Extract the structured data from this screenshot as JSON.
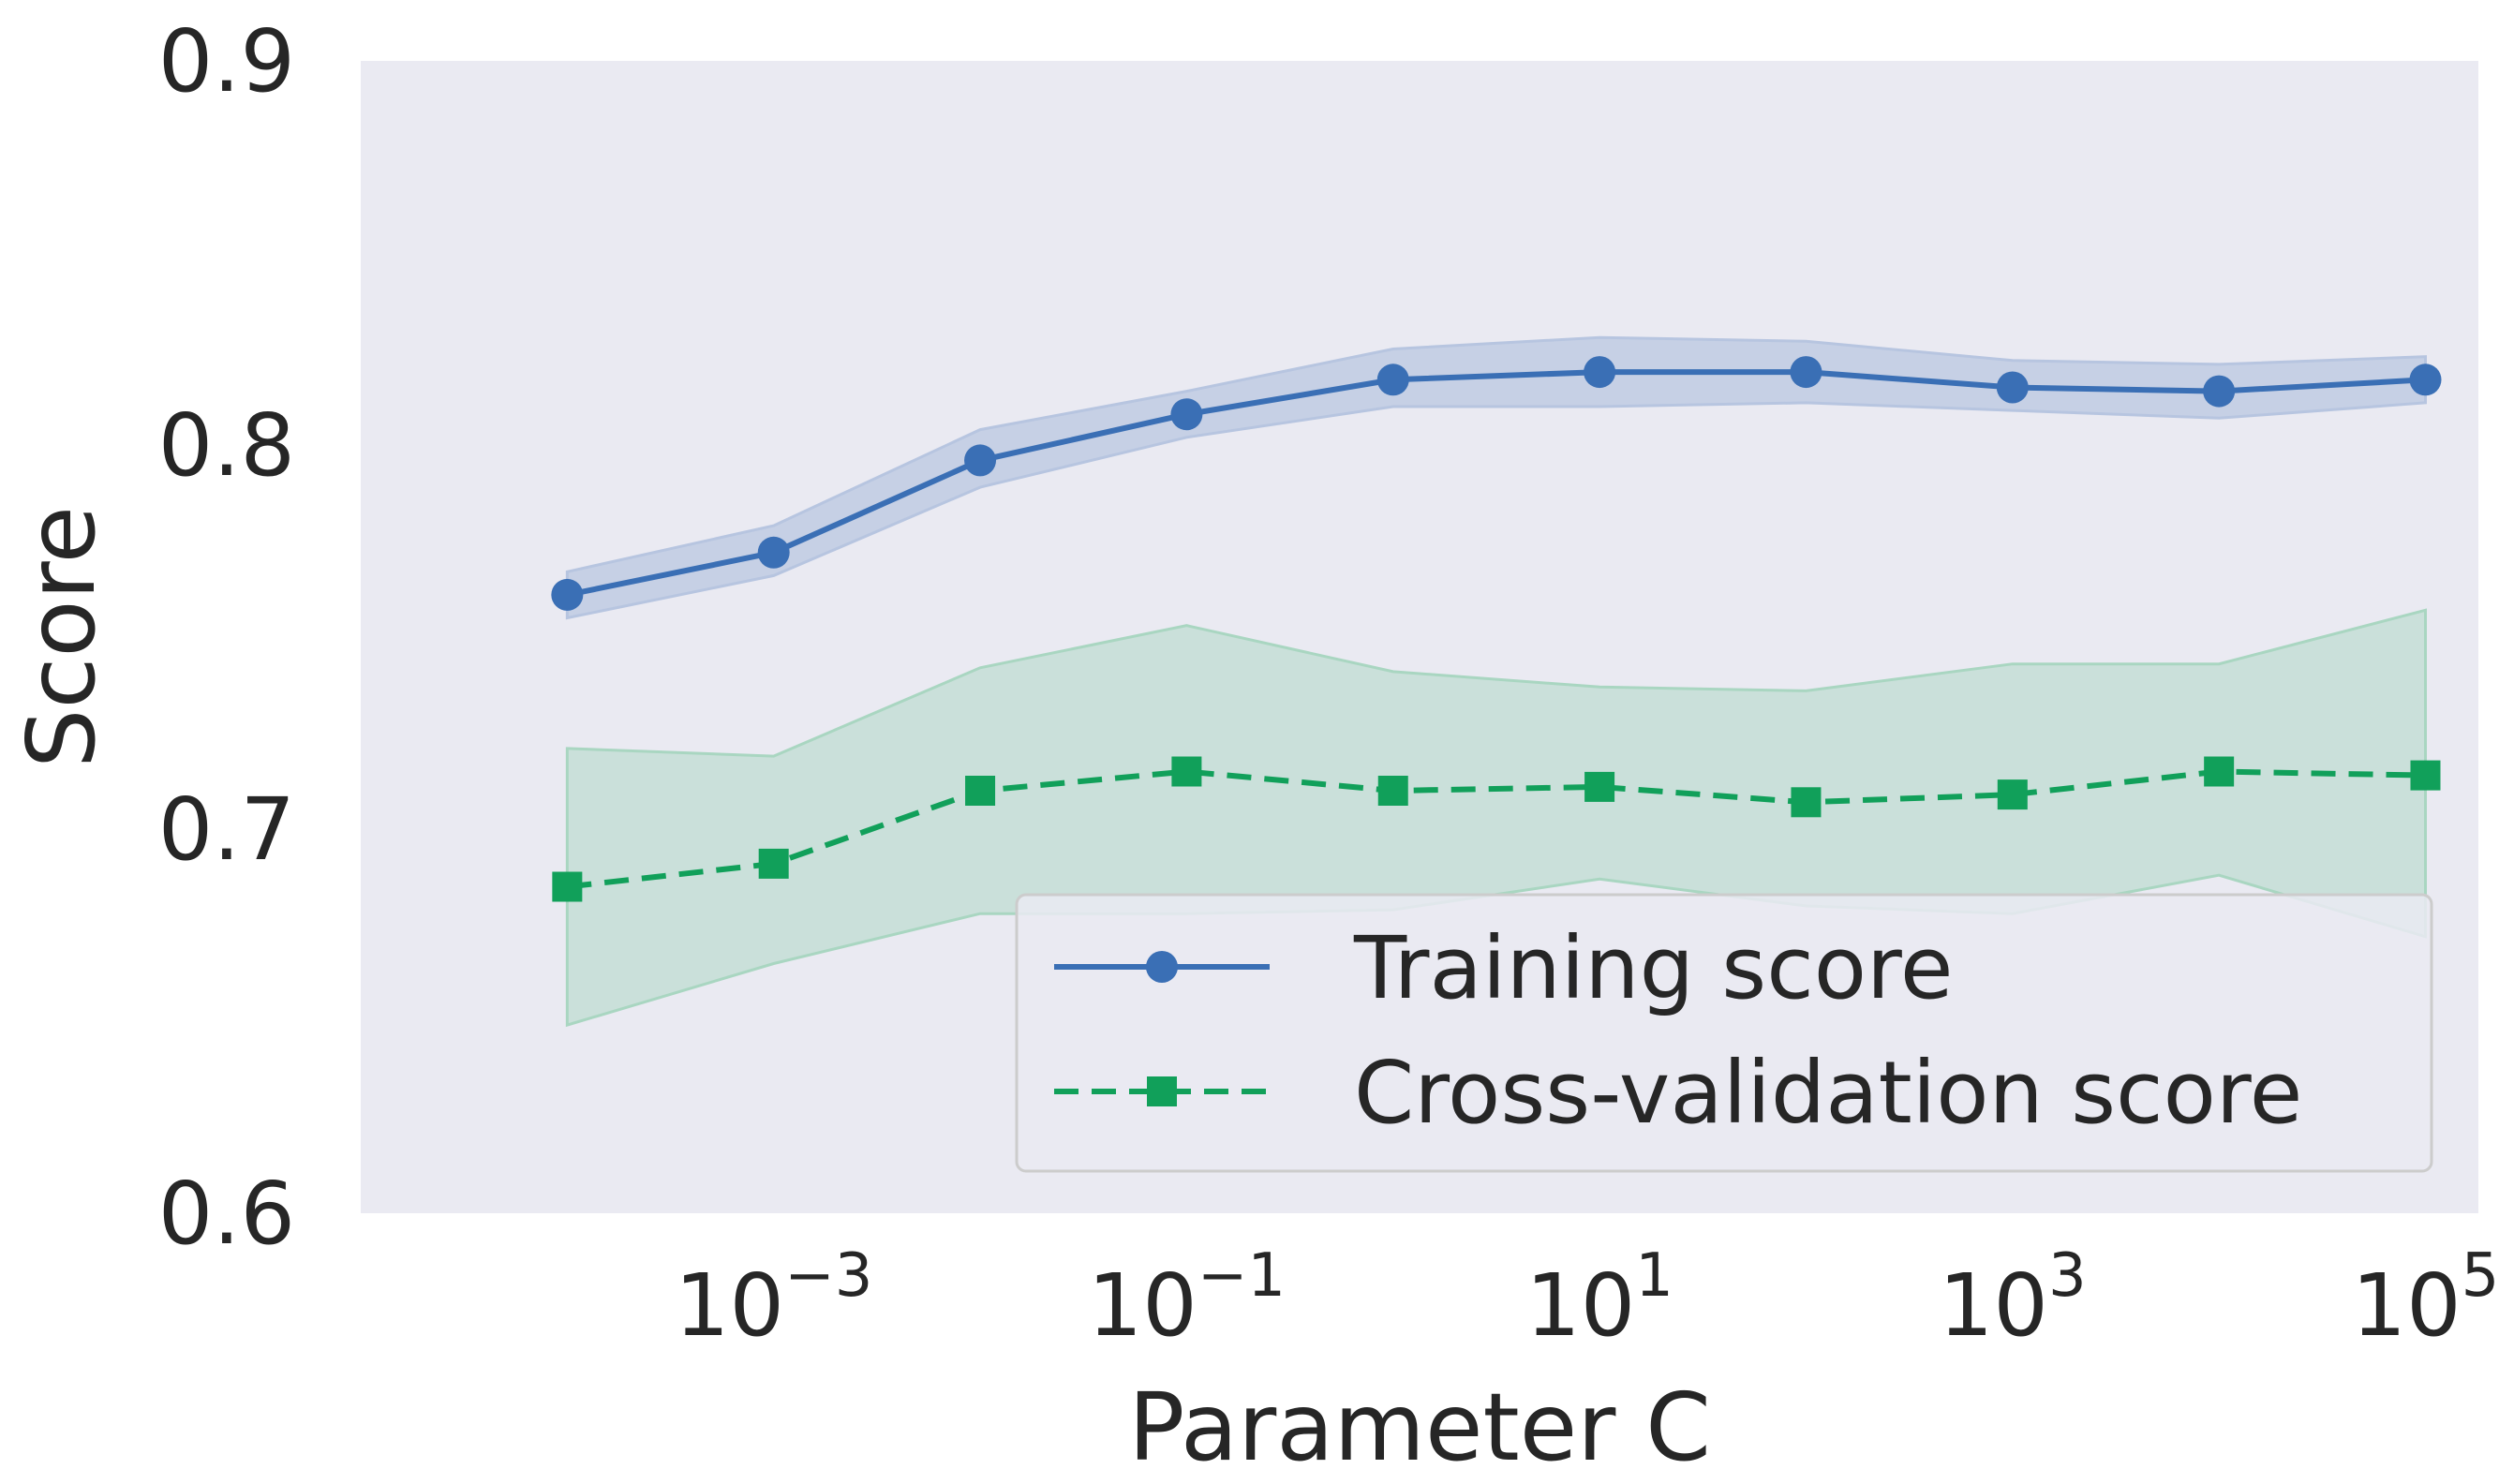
{
  "chart_data": {
    "type": "line",
    "title": "",
    "xlabel": "Parameter C",
    "ylabel": "Score",
    "xscale": "log",
    "xlim_log10": [
      -5,
      5
    ],
    "ylim": [
      0.6,
      0.9
    ],
    "grid": false,
    "yticks": [
      "0.6",
      "0.7",
      "0.8",
      "0.9"
    ],
    "xticks": [
      {
        "base": "10",
        "exp": "−3",
        "log10": -3
      },
      {
        "base": "10",
        "exp": "−1",
        "log10": -1
      },
      {
        "base": "10",
        "exp": "1",
        "log10": 1
      },
      {
        "base": "10",
        "exp": "3",
        "log10": 3
      },
      {
        "base": "10",
        "exp": "5",
        "log10": 5
      }
    ],
    "x_log10": [
      -4,
      -3,
      -2,
      -1,
      0,
      1,
      2,
      3,
      4,
      5
    ],
    "series": [
      {
        "name": "Training score",
        "color": "#3a6fb5",
        "marker": "circle",
        "linestyle": "solid",
        "values": [
          0.761,
          0.772,
          0.796,
          0.808,
          0.817,
          0.819,
          0.819,
          0.815,
          0.814,
          0.817
        ],
        "band_lower": [
          0.755,
          0.766,
          0.789,
          0.802,
          0.81,
          0.81,
          0.811,
          0.809,
          0.807,
          0.811
        ],
        "band_upper": [
          0.767,
          0.779,
          0.804,
          0.814,
          0.825,
          0.828,
          0.827,
          0.822,
          0.821,
          0.823
        ]
      },
      {
        "name": "Cross-validation score",
        "color": "#11a05a",
        "marker": "square",
        "linestyle": "dashed",
        "values": [
          0.685,
          0.691,
          0.71,
          0.715,
          0.71,
          0.711,
          0.707,
          0.709,
          0.715,
          0.714
        ],
        "band_lower": [
          0.649,
          0.665,
          0.678,
          0.678,
          0.679,
          0.687,
          0.68,
          0.678,
          0.688,
          0.672
        ],
        "band_upper": [
          0.721,
          0.719,
          0.742,
          0.753,
          0.741,
          0.737,
          0.736,
          0.743,
          0.743,
          0.757
        ]
      }
    ],
    "legend": {
      "position": "lower-right",
      "entries": [
        "Training score",
        "Cross-validation score"
      ]
    },
    "colors": {
      "plot_background": "#eaeaf2",
      "text": "#262626",
      "training_band": "#b7c5e0",
      "cv_band": "#a9d6c1"
    }
  }
}
